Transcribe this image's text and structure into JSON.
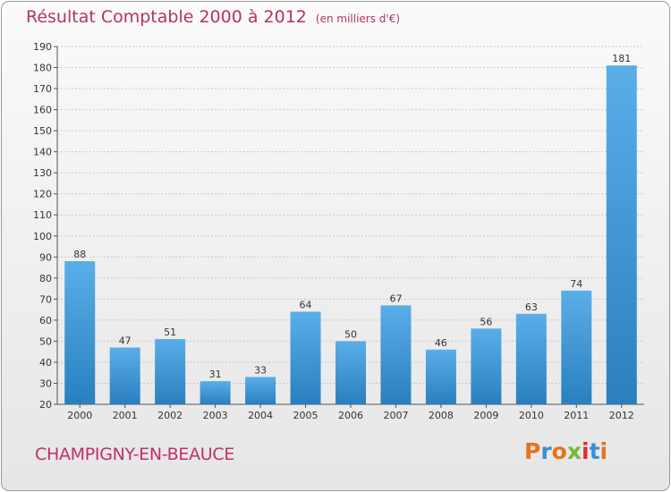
{
  "chart_data": {
    "type": "bar",
    "title": "Résultat Comptable 2000 à 2012",
    "unit_note": "(en milliers d'€)",
    "categories": [
      "2000",
      "2001",
      "2002",
      "2003",
      "2004",
      "2005",
      "2006",
      "2007",
      "2008",
      "2009",
      "2010",
      "2011",
      "2012"
    ],
    "values": [
      88,
      47,
      51,
      31,
      33,
      64,
      50,
      67,
      46,
      56,
      63,
      74,
      181
    ],
    "ylim": [
      20,
      190
    ],
    "yticks": [
      20,
      30,
      40,
      50,
      60,
      70,
      80,
      90,
      100,
      110,
      120,
      130,
      140,
      150,
      160,
      170,
      180,
      190
    ],
    "grid": true,
    "xlabel": "",
    "ylabel": ""
  },
  "footer": {
    "location": "CHAMPIGNY-EN-BEAUCE",
    "brand": "Proxiti"
  },
  "colors": {
    "title": "#b5316a",
    "bar_top": "#5aaee8",
    "bar_bottom": "#2a7fbf",
    "grid": "#c8c8c8",
    "brand_letters": [
      "#e8731b",
      "#3a8fd1",
      "#e8731b",
      "#79b836",
      "#d8322f",
      "#3a8fd1",
      "#e8731b"
    ]
  }
}
